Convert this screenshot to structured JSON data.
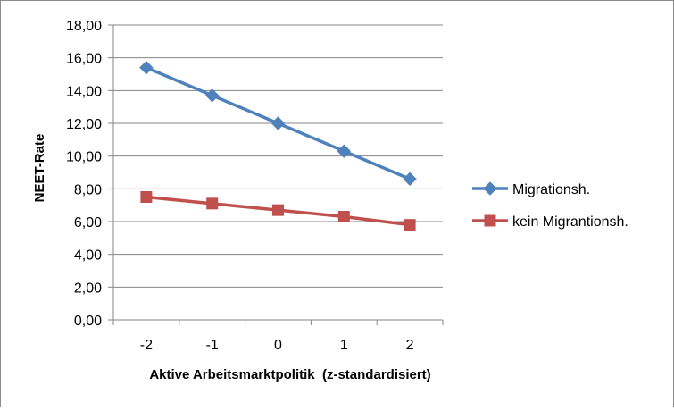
{
  "chart_data": {
    "type": "line",
    "title": "",
    "xlabel": "Aktive Arbeitsmarktpolitik  (z-standardisiert)",
    "ylabel": "NEET-Rate",
    "categories": [
      "-2",
      "-1",
      "0",
      "1",
      "2"
    ],
    "ylim": [
      0,
      18
    ],
    "yticks": [
      "0,00",
      "2,00",
      "4,00",
      "6,00",
      "8,00",
      "10,00",
      "12,00",
      "14,00",
      "16,00",
      "18,00"
    ],
    "grid": true,
    "legend_position": "right",
    "series": [
      {
        "name": "Migrationsh.",
        "values": [
          15.4,
          13.7,
          12.0,
          10.3,
          8.6
        ],
        "color": "#4f81bd",
        "marker": "diamond"
      },
      {
        "name": "kein Migrantionsh.",
        "values": [
          7.5,
          7.1,
          6.7,
          6.3,
          5.8
        ],
        "color": "#c0504d",
        "marker": "square"
      }
    ]
  }
}
